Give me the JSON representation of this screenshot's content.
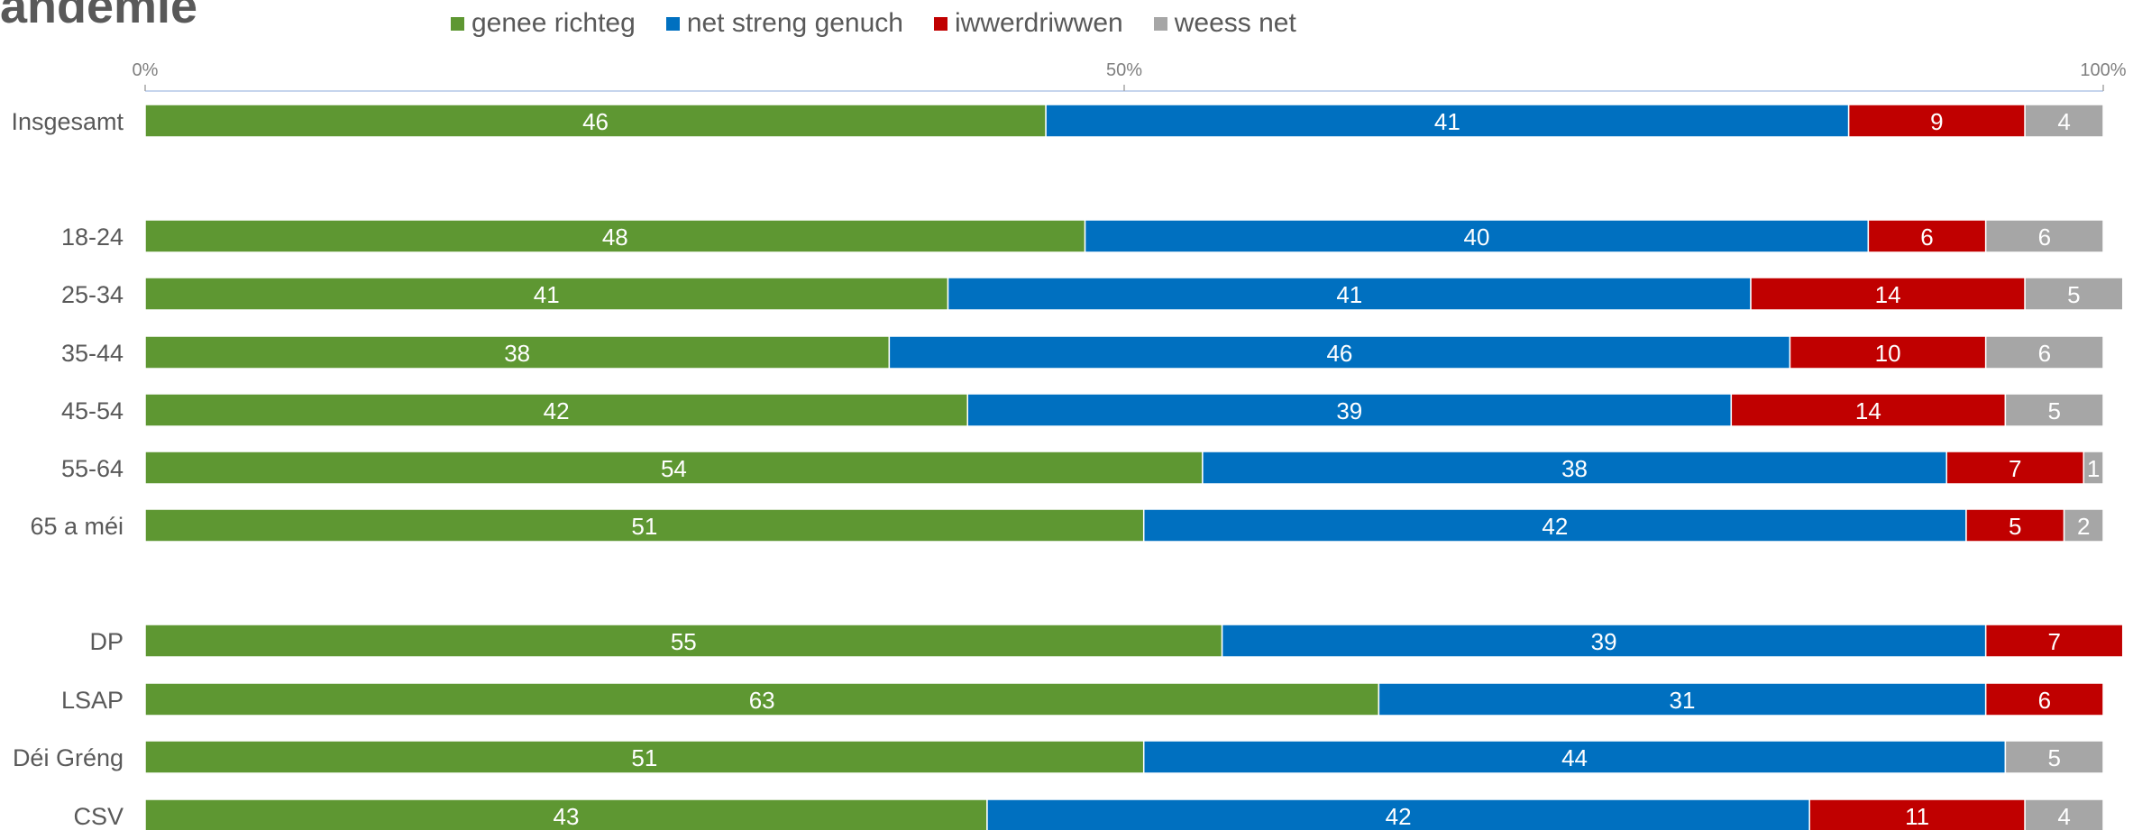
{
  "title": "andemie",
  "chart_data": {
    "type": "bar",
    "orientation": "horizontal",
    "stacked": true,
    "percent": true,
    "xlim": [
      0,
      100
    ],
    "ticks": [
      "0%",
      "50%",
      "100%"
    ],
    "legend_position": "top",
    "categories": [
      "Insgesamt",
      "18-24",
      "25-34",
      "35-44",
      "45-54",
      "55-64",
      "65 a méi",
      "DP",
      "LSAP",
      "Déi Gréng",
      "CSV"
    ],
    "series": [
      {
        "name": "genee richteg",
        "color": "#5e9732",
        "values": [
          46,
          48,
          41,
          38,
          42,
          54,
          51,
          55,
          63,
          51,
          43
        ]
      },
      {
        "name": "net streng genuch",
        "color": "#0070c0",
        "values": [
          41,
          40,
          41,
          46,
          39,
          38,
          42,
          39,
          31,
          44,
          42
        ]
      },
      {
        "name": "iwwerdriwwen",
        "color": "#c00000",
        "values": [
          9,
          6,
          14,
          10,
          14,
          7,
          5,
          7,
          6,
          0,
          11
        ]
      },
      {
        "name": "weess net",
        "color": "#a6a6a6",
        "values": [
          4,
          6,
          5,
          6,
          5,
          1,
          2,
          0,
          0,
          5,
          4
        ]
      }
    ]
  }
}
